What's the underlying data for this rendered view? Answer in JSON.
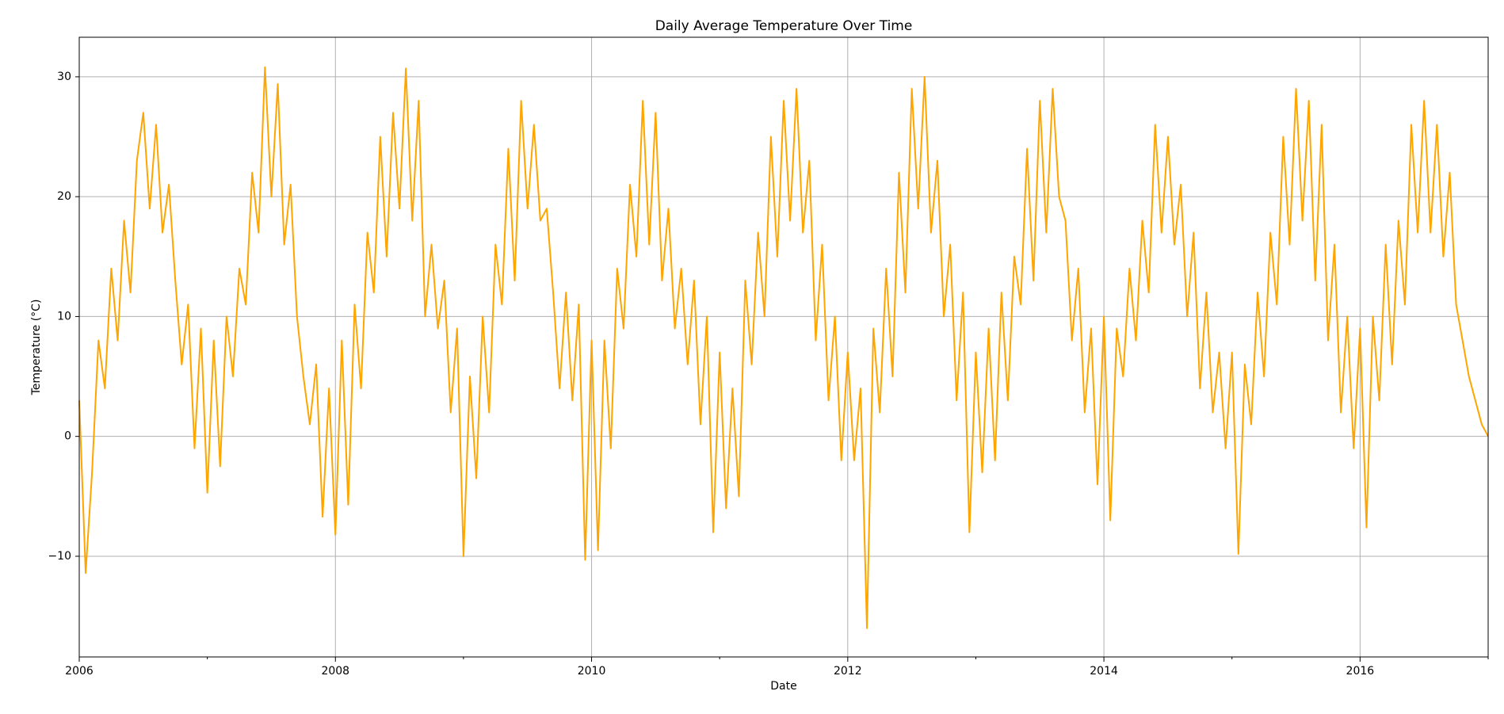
{
  "chart_data": {
    "type": "line",
    "title": "Daily Average Temperature Over Time",
    "x_label": "Date",
    "y_label": "Temperature (°C)",
    "x": [
      2006,
      2006.05,
      2006.1,
      2006.15,
      2006.2,
      2006.25,
      2006.3,
      2006.35,
      2006.4,
      2006.45,
      2006.5,
      2006.55,
      2006.6,
      2006.65,
      2006.7,
      2006.75,
      2006.8,
      2006.85,
      2006.9,
      2006.95,
      2007,
      2007.05,
      2007.1,
      2007.15,
      2007.2,
      2007.25,
      2007.3,
      2007.35,
      2007.4,
      2007.45,
      2007.5,
      2007.55,
      2007.6,
      2007.65,
      2007.7,
      2007.75,
      2007.8,
      2007.85,
      2007.9,
      2007.95,
      2008,
      2008.05,
      2008.1,
      2008.15,
      2008.2,
      2008.25,
      2008.3,
      2008.35,
      2008.4,
      2008.45,
      2008.5,
      2008.55,
      2008.6,
      2008.65,
      2008.7,
      2008.75,
      2008.8,
      2008.85,
      2008.9,
      2008.95,
      2009,
      2009.05,
      2009.1,
      2009.15,
      2009.2,
      2009.25,
      2009.3,
      2009.35,
      2009.4,
      2009.45,
      2009.5,
      2009.55,
      2009.6,
      2009.65,
      2009.7,
      2009.75,
      2009.8,
      2009.85,
      2009.9,
      2009.95,
      2010,
      2010.05,
      2010.1,
      2010.15,
      2010.2,
      2010.25,
      2010.3,
      2010.35,
      2010.4,
      2010.45,
      2010.5,
      2010.55,
      2010.6,
      2010.65,
      2010.7,
      2010.75,
      2010.8,
      2010.85,
      2010.9,
      2010.95,
      2011,
      2011.05,
      2011.1,
      2011.15,
      2011.2,
      2011.25,
      2011.3,
      2011.35,
      2011.4,
      2011.45,
      2011.5,
      2011.55,
      2011.6,
      2011.65,
      2011.7,
      2011.75,
      2011.8,
      2011.85,
      2011.9,
      2011.95,
      2012,
      2012.05,
      2012.1,
      2012.15,
      2012.2,
      2012.25,
      2012.3,
      2012.35,
      2012.4,
      2012.45,
      2012.5,
      2012.55,
      2012.6,
      2012.65,
      2012.7,
      2012.75,
      2012.8,
      2012.85,
      2012.9,
      2012.95,
      2013,
      2013.05,
      2013.1,
      2013.15,
      2013.2,
      2013.25,
      2013.3,
      2013.35,
      2013.4,
      2013.45,
      2013.5,
      2013.55,
      2013.6,
      2013.65,
      2013.7,
      2013.75,
      2013.8,
      2013.85,
      2013.9,
      2013.95,
      2014,
      2014.05,
      2014.1,
      2014.15,
      2014.2,
      2014.25,
      2014.3,
      2014.35,
      2014.4,
      2014.45,
      2014.5,
      2014.55,
      2014.6,
      2014.65,
      2014.7,
      2014.75,
      2014.8,
      2014.85,
      2014.9,
      2014.95,
      2015,
      2015.05,
      2015.1,
      2015.15,
      2015.2,
      2015.25,
      2015.3,
      2015.35,
      2015.4,
      2015.45,
      2015.5,
      2015.55,
      2015.6,
      2015.65,
      2015.7,
      2015.75,
      2015.8,
      2015.85,
      2015.9,
      2015.95,
      2016,
      2016.05,
      2016.1,
      2016.15,
      2016.2,
      2016.25,
      2016.3,
      2016.35,
      2016.4,
      2016.45,
      2016.5,
      2016.55,
      2016.6,
      2016.65,
      2016.7,
      2016.75,
      2016.8,
      2016.85,
      2016.9,
      2016.95,
      2017
    ],
    "series": [
      {
        "name": "Temperature",
        "color": "#ffa500",
        "values": [
          3,
          -11.4,
          -3,
          8,
          4,
          14,
          8,
          18,
          12,
          23,
          27,
          19,
          26,
          17,
          21,
          13,
          6,
          11,
          -1,
          9,
          -4.7,
          8,
          -2.5,
          10,
          5,
          14,
          11,
          22,
          17,
          30.8,
          20,
          29.4,
          16,
          21,
          10,
          5,
          1,
          6,
          -6.7,
          4,
          -8.2,
          8,
          -5.7,
          11,
          4,
          17,
          12,
          25,
          15,
          27,
          19,
          30.7,
          18,
          28,
          10,
          16,
          9,
          13,
          2,
          9,
          -10,
          5,
          -3.5,
          10,
          2,
          16,
          11,
          24,
          13,
          28,
          19,
          26,
          18,
          19,
          12,
          4,
          12,
          3,
          11,
          -10.3,
          8,
          -9.5,
          8,
          -1,
          14,
          9,
          21,
          15,
          28,
          16,
          27,
          13,
          19,
          9,
          14,
          6,
          13,
          1,
          10,
          -8,
          7,
          -6,
          4,
          -5,
          13,
          6,
          17,
          10,
          25,
          15,
          28,
          18,
          29,
          17,
          23,
          8,
          16,
          3,
          10,
          -2,
          7,
          -2,
          4,
          -16,
          9,
          2,
          14,
          5,
          22,
          12,
          29,
          19,
          30,
          17,
          23,
          10,
          16,
          3,
          12,
          -8,
          7,
          -3,
          9,
          -2,
          12,
          3,
          15,
          11,
          24,
          13,
          28,
          17,
          29,
          20,
          18,
          8,
          14,
          2,
          9,
          -4,
          10,
          -7,
          9,
          5,
          14,
          8,
          18,
          12,
          26,
          17,
          25,
          16,
          21,
          10,
          17,
          4,
          12,
          2,
          7,
          -1,
          7,
          -9.8,
          6,
          1,
          12,
          5,
          17,
          11,
          25,
          16,
          29,
          18,
          28,
          13,
          26,
          8,
          16,
          2,
          10,
          -1,
          9,
          -7.6,
          10,
          3,
          16,
          6,
          18,
          11,
          26,
          17,
          28,
          17,
          26,
          15,
          22,
          11,
          8,
          5,
          3,
          1,
          0
        ]
      }
    ],
    "xlim": [
      2006,
      2017
    ],
    "xticks": [
      2006,
      2008,
      2010,
      2012,
      2014,
      2016
    ],
    "xminorticks": [
      2007,
      2009,
      2011,
      2013,
      2015,
      2017
    ],
    "ylim": [
      -18.4,
      33.3
    ],
    "yticks": [
      {
        "value": -10,
        "label": "−10"
      },
      0,
      10,
      20,
      30
    ],
    "grid": true
  }
}
